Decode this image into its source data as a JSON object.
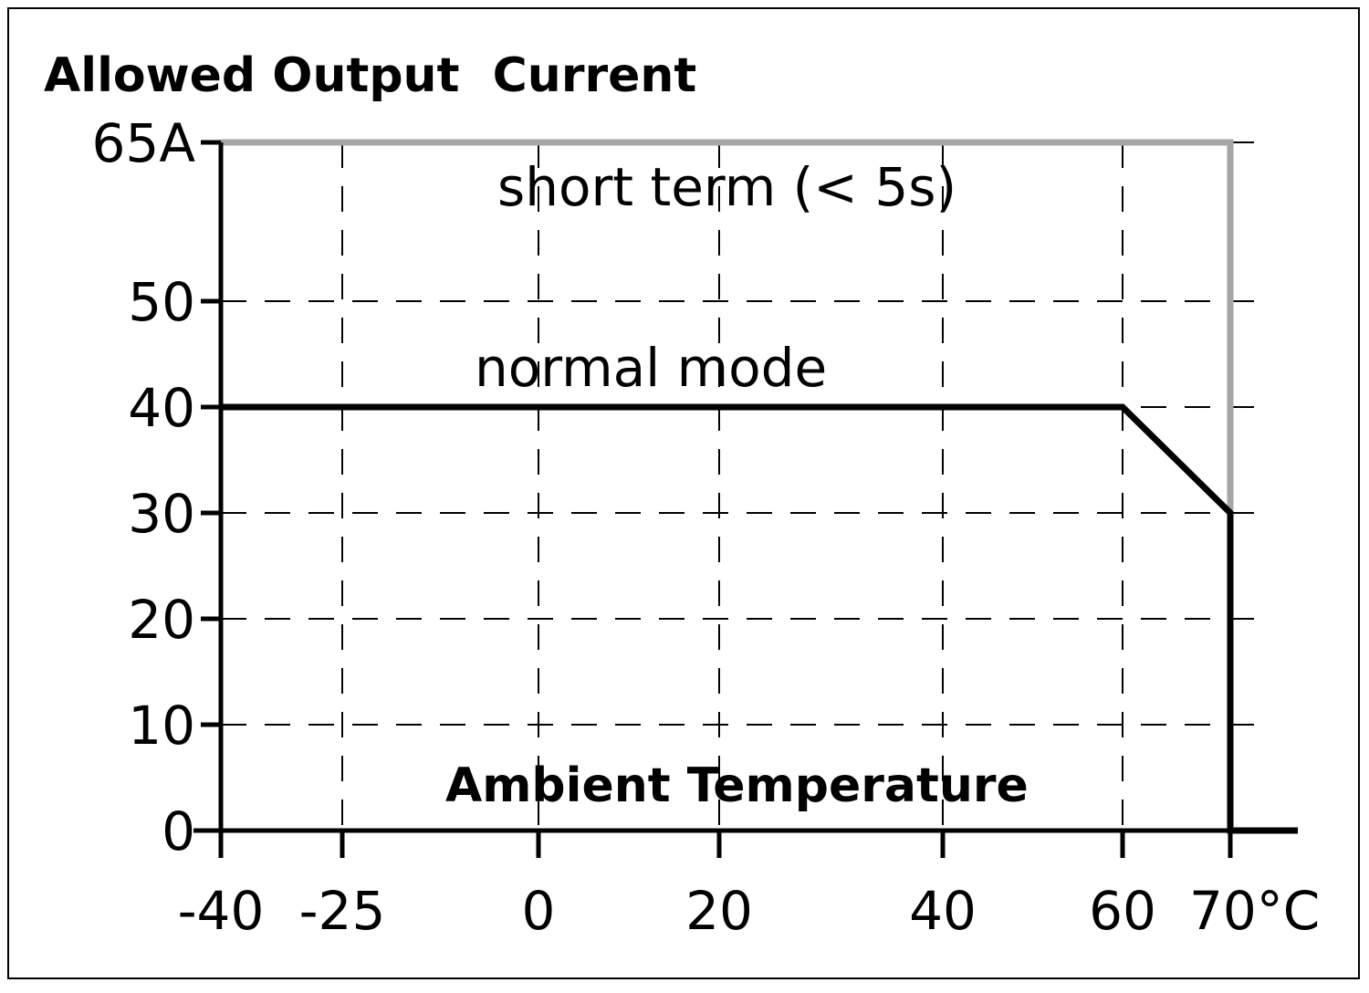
{
  "chart_data": {
    "type": "line",
    "title": "Allowed Output  Current",
    "xlabel": "Ambient Temperature",
    "ylabel": "",
    "xlim": [
      -40,
      72
    ],
    "ylim": [
      0,
      65
    ],
    "x_ticks": [
      {
        "value": -40,
        "label": "-40"
      },
      {
        "value": -25,
        "label": "-25"
      },
      {
        "value": 0,
        "label": "0"
      },
      {
        "value": 20,
        "label": "20"
      },
      {
        "value": 40,
        "label": "40"
      },
      {
        "value": 60,
        "label": "60"
      },
      {
        "value": 70,
        "label": "70°C"
      }
    ],
    "y_ticks": [
      {
        "value": 0,
        "label": "0"
      },
      {
        "value": 10,
        "label": "10"
      },
      {
        "value": 20,
        "label": "20"
      },
      {
        "value": 30,
        "label": "30"
      },
      {
        "value": 40,
        "label": "40"
      },
      {
        "value": 50,
        "label": "50"
      },
      {
        "value": 65,
        "label": "65A"
      }
    ],
    "grid": true,
    "series": [
      {
        "name": "short term (< 5s)",
        "color": "#a6a6a6",
        "points": [
          [
            -40,
            65
          ],
          [
            70,
            65
          ],
          [
            70,
            30
          ]
        ]
      },
      {
        "name": "normal mode",
        "color": "#000000",
        "points": [
          [
            -40,
            40
          ],
          [
            60,
            40
          ],
          [
            70,
            30
          ],
          [
            70,
            0
          ],
          [
            77,
            0
          ]
        ]
      }
    ]
  }
}
